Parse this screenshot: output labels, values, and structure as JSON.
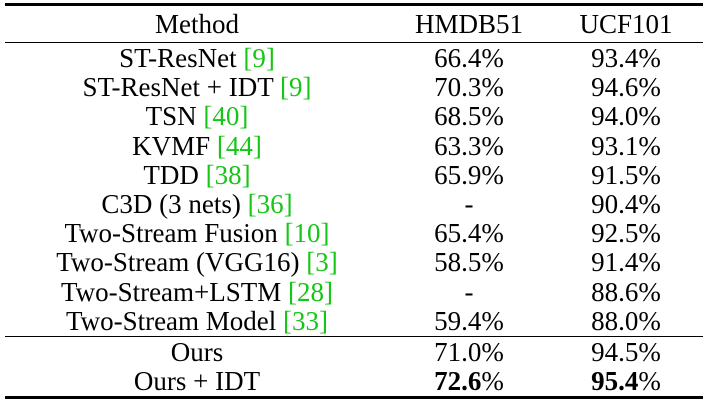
{
  "table": {
    "headers": {
      "method": "Method",
      "hmdb51": "HMDB51",
      "ucf101": "UCF101"
    },
    "colors": {
      "reference_link": "#16c616",
      "text": "#000000"
    },
    "rows": [
      {
        "name": "ST-ResNet ",
        "ref": "[9]",
        "hmdb51": "66.4%",
        "ucf101": "93.4%"
      },
      {
        "name": "ST-ResNet + IDT ",
        "ref": "[9]",
        "hmdb51": "70.3%",
        "ucf101": "94.6%"
      },
      {
        "name": "TSN ",
        "ref": "[40]",
        "hmdb51": "68.5%",
        "ucf101": "94.0%"
      },
      {
        "name": "KVMF ",
        "ref": "[44]",
        "hmdb51": "63.3%",
        "ucf101": "93.1%"
      },
      {
        "name": "TDD ",
        "ref": "[38]",
        "hmdb51": "65.9%",
        "ucf101": "91.5%"
      },
      {
        "name": "C3D (3 nets) ",
        "ref": "[36]",
        "hmdb51": "-",
        "ucf101": "90.4%"
      },
      {
        "name": "Two-Stream Fusion ",
        "ref": "[10]",
        "hmdb51": "65.4%",
        "ucf101": "92.5%"
      },
      {
        "name": "Two-Stream (VGG16) ",
        "ref": "[3]",
        "hmdb51": "58.5%",
        "ucf101": "91.4%"
      },
      {
        "name": "Two-Stream+LSTM ",
        "ref": "[28]",
        "hmdb51": "-",
        "ucf101": "88.6%"
      },
      {
        "name": "Two-Stream Model ",
        "ref": "[33]",
        "hmdb51": "59.4%",
        "ucf101": "88.0%"
      }
    ],
    "ours": [
      {
        "name": "Ours",
        "hmdb51": "71.0%",
        "ucf101": "94.5%"
      },
      {
        "name": "Ours + IDT",
        "hmdb51_num": "72.6",
        "hmdb51_unit": "%",
        "ucf101_num": "95.4",
        "ucf101_unit": "%"
      }
    ]
  }
}
